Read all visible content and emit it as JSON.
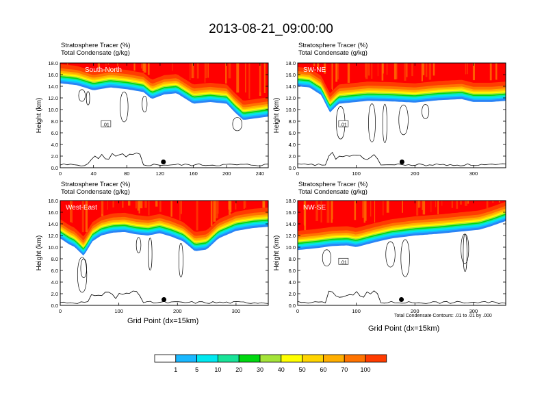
{
  "title": "2013-08-21_09:00:00",
  "panel_header_line1": "Stratosphere Tracer   (%)",
  "panel_header_line2": "Total Condensate   (g/kg)",
  "footnote": "Total Condensate Contours: .01 to .01 by .000",
  "colors": [
    "#ffffff",
    "#2a84f5",
    "#19b8ff",
    "#00e8f0",
    "#18e398",
    "#00d810",
    "#a4e438",
    "#ffff00",
    "#ffd400",
    "#ffae00",
    "#ff7300",
    "#ff3c00",
    "#ff0000"
  ],
  "colorbar_labels": [
    "1",
    "5",
    "10",
    "20",
    "30",
    "40",
    "50",
    "60",
    "70",
    "100"
  ],
  "chart_data": [
    {
      "type": "heatmap",
      "name": "South-North",
      "label": "South-North",
      "ylabel": "Height (km)",
      "xlabel": "",
      "xlim": [
        0,
        250
      ],
      "ylim": [
        0,
        18
      ],
      "xticks": [
        "0",
        "40",
        "80",
        "120",
        "160",
        "200",
        "240"
      ],
      "yticks": [
        "0.0",
        "2.0",
        "4.0",
        "6.0",
        "8.0",
        "10.0",
        "12.0",
        "14.0",
        "16.0",
        "18.0"
      ],
      "tracer_boundary": {
        "x": [
          0,
          20,
          40,
          60,
          80,
          100,
          110,
          125,
          140,
          160,
          180,
          200,
          210,
          220,
          235,
          250
        ],
        "y": [
          14.5,
          14.2,
          13.3,
          13.8,
          13.5,
          13.0,
          11.8,
          12.6,
          12.8,
          11.0,
          11.3,
          11.0,
          9.5,
          8.2,
          8.5,
          8.8
        ]
      },
      "contour_label": ".01",
      "marker": {
        "x": 124,
        "y": 1.0
      }
    },
    {
      "type": "heatmap",
      "name": "SW-NE",
      "label": "SW-NE",
      "ylabel": "Height (km)",
      "xlabel": "",
      "xlim": [
        0,
        355
      ],
      "ylim": [
        0,
        18
      ],
      "xticks": [
        "0",
        "100",
        "200",
        "300"
      ],
      "yticks": [
        "0.0",
        "2.0",
        "4.0",
        "6.0",
        "8.0",
        "10.0",
        "12.0",
        "14.0",
        "16.0",
        "18.0"
      ],
      "tracer_boundary": {
        "x": [
          0,
          20,
          40,
          55,
          70,
          90,
          120,
          160,
          200,
          240,
          280,
          300,
          330,
          355
        ],
        "y": [
          14.0,
          13.8,
          12.5,
          9.5,
          11.0,
          11.2,
          11.5,
          11.4,
          11.2,
          11.6,
          11.8,
          11.3,
          11.3,
          11.5
        ]
      },
      "contour_label": ".01",
      "marker": {
        "x": 178,
        "y": 1.0
      }
    },
    {
      "type": "heatmap",
      "name": "West-East",
      "label": "West-East",
      "ylabel": "Height (km)",
      "xlabel": "Grid Point (dx=15km)",
      "xlim": [
        0,
        355
      ],
      "ylim": [
        0,
        18
      ],
      "xticks": [
        "0",
        "100",
        "200",
        "300"
      ],
      "yticks": [
        "0.0",
        "2.0",
        "4.0",
        "6.0",
        "8.0",
        "10.0",
        "12.0",
        "14.0",
        "16.0",
        "18.0"
      ],
      "tracer_boundary": {
        "x": [
          0,
          15,
          25,
          40,
          55,
          70,
          90,
          110,
          130,
          150,
          170,
          190,
          210,
          230,
          250,
          270,
          300,
          330,
          355
        ],
        "y": [
          11.5,
          10.5,
          10.0,
          8.5,
          11.0,
          12.0,
          12.5,
          12.6,
          12.2,
          12.0,
          12.4,
          11.8,
          11.0,
          9.3,
          9.6,
          11.5,
          12.8,
          13.3,
          13.5
        ]
      },
      "contour_label": "",
      "marker": {
        "x": 177,
        "y": 1.0
      }
    },
    {
      "type": "heatmap",
      "name": "NW-SE",
      "label": "NW-SE",
      "ylabel": "Height (km)",
      "xlabel": "Grid Point (dx=15km)",
      "xlim": [
        0,
        355
      ],
      "ylim": [
        0,
        18
      ],
      "xticks": [
        "0",
        "100",
        "200",
        "300"
      ],
      "yticks": [
        "0.0",
        "2.0",
        "4.0",
        "6.0",
        "8.0",
        "10.0",
        "12.0",
        "14.0",
        "16.0",
        "18.0"
      ],
      "tracer_boundary": {
        "x": [
          0,
          30,
          60,
          85,
          100,
          130,
          160,
          200,
          240,
          280,
          310,
          330,
          355
        ],
        "y": [
          9.5,
          9.8,
          10.2,
          10.3,
          10.0,
          10.8,
          11.5,
          12.0,
          12.3,
          12.7,
          13.0,
          13.6,
          14.5
        ]
      },
      "contour_label": ".01",
      "marker": {
        "x": 177,
        "y": 1.0
      }
    }
  ]
}
